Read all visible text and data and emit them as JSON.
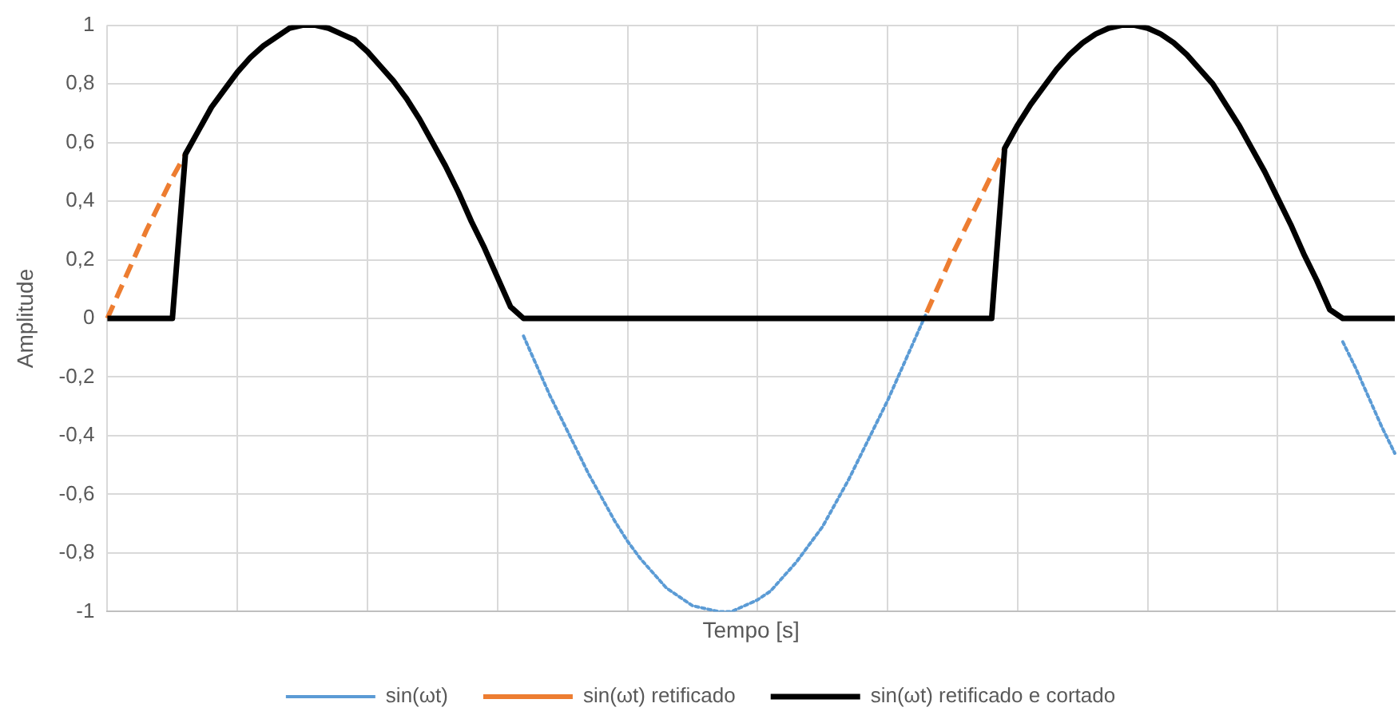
{
  "chart_data": {
    "type": "line",
    "xlabel": "Tempo [s]",
    "ylabel": "Amplitude",
    "categories": [
      null,
      null,
      null,
      null,
      null,
      null,
      null,
      null,
      null,
      null,
      null,
      null,
      null,
      null,
      null,
      null,
      null,
      null,
      null,
      null,
      null,
      null,
      null,
      null,
      null,
      null,
      null,
      null,
      null,
      null,
      null,
      null,
      null,
      null,
      null,
      null,
      null,
      null,
      null,
      null,
      null,
      null,
      null,
      null,
      null,
      null,
      null,
      null,
      null,
      null,
      null,
      null,
      null,
      null,
      null,
      null,
      null,
      null,
      null,
      null,
      null,
      null,
      null,
      null,
      null,
      null,
      null,
      null,
      null,
      null,
      null,
      null,
      null,
      null,
      null,
      null,
      null,
      null,
      null,
      null,
      null,
      null,
      null,
      null,
      null,
      null,
      null,
      null,
      null,
      null,
      null,
      null,
      null,
      null,
      null,
      null,
      null,
      null,
      null,
      null
    ],
    "ylim": [
      -1,
      1
    ],
    "yticks": [
      -1,
      {
        "value": -0.8,
        "label": "-0,8"
      },
      {
        "value": -0.6,
        "label": "-0,6"
      },
      {
        "value": -0.4,
        "label": "-0,4"
      },
      {
        "value": -0.2,
        "label": "-0,2"
      },
      0,
      {
        "value": 0.2,
        "label": "0,2"
      },
      {
        "value": 0.4,
        "label": "0,4"
      },
      {
        "value": 0.6,
        "label": "0,6"
      },
      {
        "value": 0.8,
        "label": "0,8"
      },
      1
    ],
    "tick_labels": "y",
    "grid": true,
    "legend": "bottom",
    "marker": "none",
    "series": [
      {
        "name": "sin(ωt)",
        "color": "#5b9bd5",
        "line_style": "dotted",
        "values": [
          null,
          null,
          null,
          null,
          null,
          null,
          null,
          null,
          null,
          null,
          null,
          null,
          null,
          null,
          null,
          null,
          null,
          null,
          null,
          null,
          null,
          null,
          null,
          null,
          null,
          null,
          null,
          null,
          null,
          null,
          null,
          null,
          -0.06,
          -0.16,
          -0.26,
          -0.35,
          -0.44,
          -0.53,
          -0.61,
          -0.69,
          -0.76,
          -0.82,
          -0.87,
          -0.92,
          -0.95,
          -0.98,
          -0.99,
          -1,
          -1,
          -0.98,
          -0.96,
          -0.93,
          -0.88,
          -0.83,
          -0.77,
          -0.71,
          -0.63,
          -0.55,
          -0.46,
          -0.37,
          -0.28,
          -0.18,
          -0.08,
          0.02,
          null,
          null,
          null,
          null,
          null,
          null,
          null,
          null,
          null,
          null,
          null,
          null,
          null,
          null,
          null,
          null,
          null,
          null,
          null,
          null,
          null,
          null,
          null,
          null,
          null,
          null,
          null,
          null,
          null,
          null,
          null,
          -0.08,
          -0.17,
          -0.27,
          -0.37,
          -0.46
        ]
      },
      {
        "name": "sin(ωt) retificado",
        "color": "#ed7d31",
        "line_style": "dashed",
        "values": [
          0,
          0.1,
          0.2,
          0.3,
          0.39,
          0.48,
          0.56,
          null,
          null,
          null,
          null,
          null,
          null,
          null,
          null,
          null,
          null,
          null,
          null,
          null,
          null,
          null,
          null,
          null,
          null,
          null,
          null,
          null,
          null,
          null,
          null,
          null,
          null,
          null,
          null,
          null,
          null,
          null,
          null,
          null,
          null,
          null,
          null,
          null,
          null,
          null,
          null,
          null,
          null,
          null,
          null,
          null,
          null,
          null,
          null,
          null,
          null,
          null,
          null,
          null,
          null,
          null,
          null,
          0.02,
          0.12,
          0.22,
          0.31,
          0.4,
          0.49,
          0.58,
          null,
          null,
          null,
          null,
          null,
          null,
          null,
          null,
          null,
          null,
          null,
          null,
          null,
          null,
          null,
          null,
          null,
          null,
          null,
          null,
          null,
          null,
          null,
          null,
          null,
          null,
          null,
          null,
          null,
          null
        ]
      },
      {
        "name": "sin(ωt) retificado e cortado",
        "color": "#000000",
        "line_style": "solid",
        "values": [
          0,
          0,
          0,
          0,
          0,
          0,
          0.56,
          0.64,
          0.72,
          0.78,
          0.84,
          0.89,
          0.93,
          0.96,
          0.99,
          1,
          1,
          0.99,
          0.97,
          0.95,
          0.91,
          0.86,
          0.81,
          0.75,
          0.68,
          0.6,
          0.52,
          0.43,
          0.33,
          0.24,
          0.14,
          0.04,
          0,
          0,
          0,
          0,
          0,
          0,
          0,
          0,
          0,
          0,
          0,
          0,
          0,
          0,
          0,
          0,
          0,
          0,
          0,
          0,
          0,
          0,
          0,
          0,
          0,
          0,
          0,
          0,
          0,
          0,
          0,
          0,
          0,
          0,
          0,
          0,
          0,
          0.58,
          0.66,
          0.73,
          0.79,
          0.85,
          0.9,
          0.94,
          0.97,
          0.99,
          1,
          1,
          0.99,
          0.97,
          0.94,
          0.9,
          0.85,
          0.8,
          0.73,
          0.66,
          0.58,
          0.5,
          0.41,
          0.32,
          0.22,
          0.13,
          0.03,
          0,
          0,
          0,
          0,
          0
        ]
      }
    ]
  }
}
